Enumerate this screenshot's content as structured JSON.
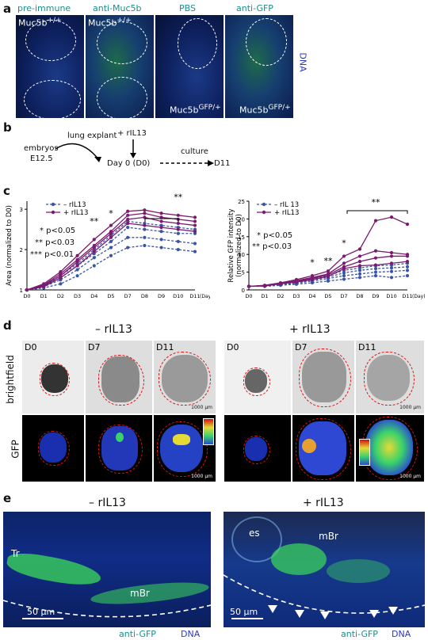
{
  "panel_a": {
    "letter": "a",
    "headers": [
      "pre-immune",
      "anti-Muc5b",
      "PBS",
      "anti-GFP"
    ],
    "genotype_wt": "Muc5b",
    "genotype_wt_sup": "+/+",
    "genotype_gfp": "Muc5b",
    "genotype_gfp_sup": "GFP/+",
    "side_label": "DNA"
  },
  "panel_b": {
    "letter": "b",
    "embryos": "embryos",
    "stage": "E12.5",
    "explant": "lung explant",
    "treatment": "+ rIL13",
    "day0": "Day 0 (D0)",
    "culture": "culture",
    "end": "D11"
  },
  "panel_c": {
    "letter": "c",
    "stats_area": [
      "* p<0.05",
      "** p<0.03",
      "*** p<0.01"
    ],
    "stats_gfp": [
      "* p<0.05",
      "** p<0.03"
    ],
    "day_unit": "(Day)",
    "sig_marks_area": [
      "**",
      "*",
      "**"
    ],
    "sig_marks_gfp": [
      "*",
      "**",
      "*",
      "**"
    ]
  },
  "chart_data": [
    {
      "type": "line",
      "ylabel": "Area (normalized to D0)",
      "x": [
        "D0",
        "D1",
        "D2",
        "D3",
        "D4",
        "D5",
        "D7",
        "D8",
        "D9",
        "D10",
        "D11"
      ],
      "ylim": [
        1,
        3.2
      ],
      "yticks": [
        1,
        2,
        3
      ],
      "series": [
        {
          "name": "– rIL13",
          "style": "dashed",
          "color": "#3a55a4",
          "values": [
            1,
            1.05,
            1.15,
            1.35,
            1.6,
            1.85,
            2.05,
            2.1,
            2.05,
            2.0,
            1.95
          ]
        },
        {
          "name": "– rIL13",
          "style": "dashed",
          "color": "#3a55a4",
          "values": [
            1,
            1.08,
            1.25,
            1.5,
            1.8,
            2.05,
            2.3,
            2.3,
            2.25,
            2.2,
            2.15
          ]
        },
        {
          "name": "– rIL13",
          "style": "dashed",
          "color": "#3a55a4",
          "values": [
            1,
            1.1,
            1.3,
            1.6,
            1.9,
            2.2,
            2.55,
            2.5,
            2.45,
            2.4,
            2.4
          ]
        },
        {
          "name": "– rIL13",
          "style": "dashed",
          "color": "#3a55a4",
          "values": [
            1,
            1.12,
            1.35,
            1.65,
            2.0,
            2.35,
            2.7,
            2.65,
            2.6,
            2.55,
            2.5
          ]
        },
        {
          "name": "+ rIL13",
          "style": "solid",
          "color": "#7b1a6e",
          "values": [
            1,
            1.15,
            1.45,
            1.85,
            2.25,
            2.6,
            2.95,
            2.98,
            2.9,
            2.85,
            2.8
          ]
        },
        {
          "name": "+ rIL13",
          "style": "solid",
          "color": "#7b1a6e",
          "values": [
            1,
            1.12,
            1.4,
            1.75,
            2.1,
            2.45,
            2.85,
            2.9,
            2.8,
            2.75,
            2.7
          ]
        },
        {
          "name": "+ rIL13",
          "style": "solid",
          "color": "#7b1a6e",
          "values": [
            1,
            1.1,
            1.35,
            1.7,
            2.05,
            2.4,
            2.75,
            2.8,
            2.7,
            2.65,
            2.6
          ]
        },
        {
          "name": "+ rIL13",
          "style": "solid",
          "color": "#7b1a6e",
          "values": [
            1,
            1.08,
            1.3,
            1.6,
            1.95,
            2.3,
            2.65,
            2.6,
            2.55,
            2.5,
            2.45
          ]
        }
      ]
    },
    {
      "type": "line",
      "ylabel": "Relative GFP intensity (normalized to D0)",
      "x": [
        "D0",
        "D1",
        "D2",
        "D3",
        "D4",
        "D5",
        "D7",
        "D8",
        "D9",
        "D10",
        "D11"
      ],
      "ylim": [
        0,
        25
      ],
      "yticks": [
        0,
        5,
        10,
        15,
        20,
        25
      ],
      "series": [
        {
          "name": "– rIL 13",
          "style": "dashed",
          "color": "#3a55a4",
          "values": [
            1,
            1.0,
            1.3,
            1.6,
            2.0,
            2.5,
            3.0,
            3.5,
            4.0,
            3.5,
            4.0
          ]
        },
        {
          "name": "– rIL 13",
          "style": "dashed",
          "color": "#3a55a4",
          "values": [
            1,
            1.1,
            1.5,
            1.9,
            2.5,
            3.2,
            4.0,
            4.5,
            5.0,
            5.2,
            5.5
          ]
        },
        {
          "name": "– rIL 13",
          "style": "dashed",
          "color": "#3a55a4",
          "values": [
            1,
            1.1,
            1.6,
            2.1,
            2.8,
            3.6,
            4.8,
            5.5,
            6.0,
            6.2,
            6.5
          ]
        },
        {
          "name": "– rIL 13",
          "style": "dashed",
          "color": "#3a55a4",
          "values": [
            1,
            1.2,
            1.7,
            2.3,
            3.1,
            4.0,
            5.5,
            6.2,
            6.8,
            7.0,
            7.5
          ]
        },
        {
          "name": "+ rIL13",
          "style": "solid",
          "color": "#7b1a6e",
          "values": [
            1,
            1.3,
            2.0,
            2.9,
            4.0,
            5.3,
            9.5,
            11.5,
            19.5,
            20.5,
            18.5
          ]
        },
        {
          "name": "+ rIL13",
          "style": "solid",
          "color": "#7b1a6e",
          "values": [
            1,
            1.2,
            1.9,
            2.6,
            3.5,
            4.5,
            7.5,
            9.5,
            11.0,
            10.5,
            10.0
          ]
        },
        {
          "name": "+ rIL13",
          "style": "solid",
          "color": "#7b1a6e",
          "values": [
            1,
            1.2,
            1.8,
            2.4,
            3.2,
            4.2,
            6.5,
            8.0,
            9.0,
            9.5,
            9.5
          ]
        },
        {
          "name": "+ rIL13",
          "style": "solid",
          "color": "#7b1a6e",
          "values": [
            1,
            1.1,
            1.7,
            2.2,
            2.9,
            3.8,
            6.0,
            6.8,
            7.0,
            7.5,
            8.0
          ]
        }
      ]
    }
  ],
  "panel_d": {
    "letter": "d",
    "group_minus": "– rIL13",
    "group_plus": "+ rIL13",
    "days": [
      "D0",
      "D7",
      "D11"
    ],
    "row_bright": "brightfield",
    "row_gfp": "GFP",
    "scale": "1000 μm"
  },
  "panel_e": {
    "letter": "e",
    "group_minus": "– rIL13",
    "group_plus": "+ rIL13",
    "tr": "Tr",
    "mbr": "mBr",
    "es": "es",
    "scale": "50 μm",
    "stain_gfp": "anti-GFP",
    "stain_dna": "DNA"
  }
}
